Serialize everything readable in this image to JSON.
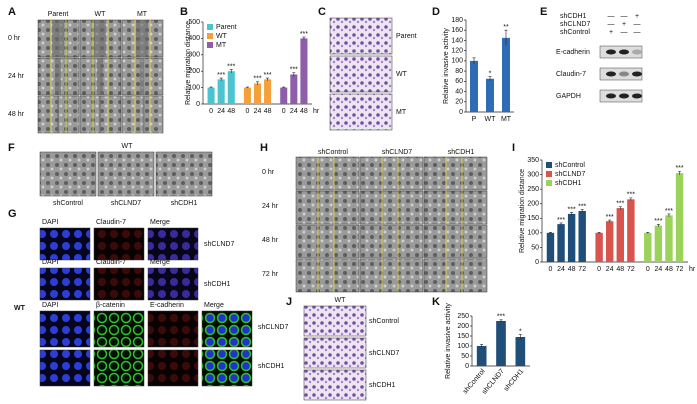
{
  "panel_labels": [
    "A",
    "B",
    "C",
    "D",
    "E",
    "F",
    "G",
    "H",
    "I",
    "J",
    "K"
  ],
  "panel_a": {
    "columns": [
      "Parent",
      "WT",
      "MT"
    ],
    "rows": [
      "0 hr",
      "24 hr",
      "48 hr"
    ]
  },
  "panel_c": {
    "labels": [
      "Parent",
      "WT",
      "MT"
    ]
  },
  "panel_e": {
    "conditions": [
      {
        "name": "shCDH1",
        "signs": [
          "—",
          "—",
          "+"
        ]
      },
      {
        "name": "shCLND7",
        "signs": [
          "—",
          "+",
          "—"
        ]
      },
      {
        "name": "shControl",
        "signs": [
          "+",
          "—",
          "—"
        ]
      }
    ],
    "bands": [
      "E-cadherin",
      "Claudin-7",
      "GAPDH"
    ]
  },
  "panel_f": {
    "title": "WT",
    "labels": [
      "shControl",
      "shCLND7",
      "shCDH1"
    ]
  },
  "panel_g": {
    "side_label": "WT",
    "rows": [
      {
        "headers": [
          "DAPI",
          "Claudin-7",
          "Merge"
        ],
        "label": "shCLND7"
      },
      {
        "headers": [
          "DAPI",
          "Claudin-7",
          "Merge"
        ],
        "label": "shCDH1"
      },
      {
        "headers": [
          "DAPI",
          "β-catenin",
          "E-cadherin",
          "Merge"
        ],
        "label": "shCLND7"
      },
      {
        "label": "shCDH1"
      }
    ]
  },
  "panel_h": {
    "columns": [
      "shControl",
      "shCLND7",
      "shCDH1"
    ],
    "rows": [
      "0 hr",
      "24 hr",
      "48 hr",
      "72 hr"
    ]
  },
  "panel_j": {
    "title": "WT",
    "labels": [
      "shControl",
      "shCLND7",
      "shCDH1"
    ]
  },
  "chart_data": [
    {
      "type": "bar",
      "ylabel": "Relative migration distance",
      "categories": [
        "0",
        "24",
        "48"
      ],
      "x_unit": "hr",
      "series": [
        {
          "name": "Parent",
          "color": "#4bc4d0",
          "values": [
            100,
            150,
            200
          ],
          "errors": [
            3,
            8,
            10
          ],
          "stars": [
            null,
            "***",
            "***"
          ]
        },
        {
          "name": "WT",
          "color": "#f4a03c",
          "values": [
            100,
            125,
            150
          ],
          "errors": [
            3,
            10,
            8
          ],
          "stars": [
            null,
            "***",
            "***"
          ]
        },
        {
          "name": "MT",
          "color": "#8e5ea8",
          "values": [
            100,
            180,
            400
          ],
          "errors": [
            3,
            12,
            8
          ],
          "stars": [
            null,
            "***",
            "***"
          ]
        }
      ],
      "ylim": [
        0,
        500
      ],
      "yticks": [
        0,
        100,
        200,
        300,
        400,
        500
      ]
    },
    {
      "type": "bar",
      "ylabel": "Relative invasive activity",
      "categories": [
        "P",
        "WT",
        "MT"
      ],
      "color": "#2e6cb5",
      "values": [
        100,
        65,
        145
      ],
      "errors": [
        6,
        4,
        15
      ],
      "stars": [
        null,
        "*",
        "**"
      ],
      "ylim": [
        0,
        180
      ],
      "yticks": [
        0,
        20,
        40,
        60,
        80,
        100,
        120,
        140,
        160,
        180
      ]
    },
    {
      "type": "bar",
      "ylabel": "Relative migration distance",
      "categories": [
        "0",
        "24",
        "48",
        "72"
      ],
      "x_unit": "hr",
      "series": [
        {
          "name": "shControl",
          "color": "#1f4e79",
          "values": [
            100,
            130,
            165,
            175
          ],
          "errors": [
            2,
            4,
            5,
            5
          ],
          "stars": [
            null,
            "***",
            "***",
            "***"
          ]
        },
        {
          "name": "shCLND7",
          "color": "#d9534f",
          "values": [
            100,
            140,
            185,
            215
          ],
          "errors": [
            2,
            4,
            5,
            5
          ],
          "stars": [
            null,
            "***",
            "***",
            "***"
          ]
        },
        {
          "name": "shCDH1",
          "color": "#9bd35a",
          "values": [
            100,
            125,
            160,
            305
          ],
          "errors": [
            2,
            4,
            5,
            6
          ],
          "stars": [
            null,
            "***",
            "***",
            "***"
          ]
        }
      ],
      "ylim": [
        0,
        350
      ],
      "yticks": [
        0,
        50,
        100,
        150,
        200,
        250,
        300,
        350
      ]
    },
    {
      "type": "bar",
      "ylabel": "Relative invasive activity",
      "categories": [
        "shControl",
        "shCLND7",
        "shCDH1"
      ],
      "color": "#1f4e79",
      "values": [
        100,
        225,
        145
      ],
      "errors": [
        8,
        6,
        12
      ],
      "stars": [
        null,
        "***",
        "*"
      ],
      "ylim": [
        0,
        250
      ],
      "yticks": [
        0,
        50,
        100,
        150,
        200,
        250
      ]
    }
  ]
}
